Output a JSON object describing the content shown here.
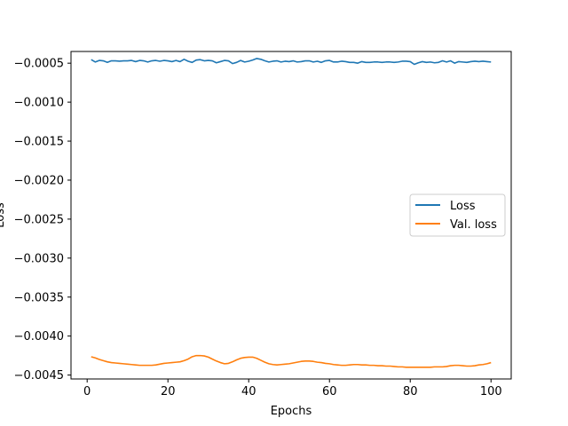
{
  "chart_data": {
    "type": "line",
    "xlabel": "Epochs",
    "ylabel": "Loss",
    "xlim": [
      -4,
      105
    ],
    "ylim": [
      -0.00455,
      -0.00035
    ],
    "xticks": [
      0,
      20,
      40,
      60,
      80,
      100
    ],
    "xtick_labels": [
      "0",
      "20",
      "40",
      "60",
      "80",
      "100"
    ],
    "yticks": [
      -0.0005,
      -0.001,
      -0.0015,
      -0.002,
      -0.0025,
      -0.003,
      -0.0035,
      -0.004,
      -0.0045
    ],
    "ytick_labels": [
      "−0.0005",
      "−0.0010",
      "−0.0015",
      "−0.0020",
      "−0.0025",
      "−0.0030",
      "−0.0035",
      "−0.0040",
      "−0.0045"
    ],
    "grid": false,
    "legend_position": "center-right",
    "series": [
      {
        "name": "Loss",
        "color": "#1f77b4",
        "x": [
          1,
          2,
          3,
          4,
          5,
          6,
          7,
          8,
          9,
          10,
          11,
          12,
          13,
          14,
          15,
          16,
          17,
          18,
          19,
          20,
          21,
          22,
          23,
          24,
          25,
          26,
          27,
          28,
          29,
          30,
          31,
          32,
          33,
          34,
          35,
          36,
          37,
          38,
          39,
          40,
          41,
          42,
          43,
          44,
          45,
          46,
          47,
          48,
          49,
          50,
          51,
          52,
          53,
          54,
          55,
          56,
          57,
          58,
          59,
          60,
          61,
          62,
          63,
          64,
          65,
          66,
          67,
          68,
          69,
          70,
          71,
          72,
          73,
          74,
          75,
          76,
          77,
          78,
          79,
          80,
          81,
          82,
          83,
          84,
          85,
          86,
          87,
          88,
          89,
          90,
          91,
          92,
          93,
          94,
          95,
          96,
          97,
          98,
          99,
          100
        ],
        "y": [
          -0.000455,
          -0.000485,
          -0.000465,
          -0.00047,
          -0.00049,
          -0.00047,
          -0.00047,
          -0.000475,
          -0.00047,
          -0.00047,
          -0.000465,
          -0.00048,
          -0.000465,
          -0.00047,
          -0.000485,
          -0.00047,
          -0.000465,
          -0.000475,
          -0.000465,
          -0.00047,
          -0.00048,
          -0.000465,
          -0.00048,
          -0.00045,
          -0.000475,
          -0.00049,
          -0.00046,
          -0.000455,
          -0.00047,
          -0.000465,
          -0.00047,
          -0.000495,
          -0.00048,
          -0.000465,
          -0.00047,
          -0.000505,
          -0.00049,
          -0.000465,
          -0.000485,
          -0.000475,
          -0.00046,
          -0.00044,
          -0.00045,
          -0.00047,
          -0.000485,
          -0.000475,
          -0.00047,
          -0.000485,
          -0.000475,
          -0.00048,
          -0.00047,
          -0.000485,
          -0.00048,
          -0.00047,
          -0.00047,
          -0.000485,
          -0.000475,
          -0.00049,
          -0.00047,
          -0.000465,
          -0.000485,
          -0.000485,
          -0.000475,
          -0.00048,
          -0.00049,
          -0.00049,
          -0.0005,
          -0.00048,
          -0.00049,
          -0.00049,
          -0.000485,
          -0.000485,
          -0.00049,
          -0.000485,
          -0.000485,
          -0.00049,
          -0.000485,
          -0.000475,
          -0.000475,
          -0.00048,
          -0.000515,
          -0.000495,
          -0.00048,
          -0.00049,
          -0.000485,
          -0.000495,
          -0.00049,
          -0.00047,
          -0.000485,
          -0.00047,
          -0.0005,
          -0.00048,
          -0.000485,
          -0.00049,
          -0.00048,
          -0.000475,
          -0.00048,
          -0.000475,
          -0.00048,
          -0.000485
        ]
      },
      {
        "name": "Val. loss",
        "color": "#ff7f0e",
        "x": [
          1,
          2,
          3,
          4,
          5,
          6,
          7,
          8,
          9,
          10,
          11,
          12,
          13,
          14,
          15,
          16,
          17,
          18,
          19,
          20,
          21,
          22,
          23,
          24,
          25,
          26,
          27,
          28,
          29,
          30,
          31,
          32,
          33,
          34,
          35,
          36,
          37,
          38,
          39,
          40,
          41,
          42,
          43,
          44,
          45,
          46,
          47,
          48,
          49,
          50,
          51,
          52,
          53,
          54,
          55,
          56,
          57,
          58,
          59,
          60,
          61,
          62,
          63,
          64,
          65,
          66,
          67,
          68,
          69,
          70,
          71,
          72,
          73,
          74,
          75,
          76,
          77,
          78,
          79,
          80,
          81,
          82,
          83,
          84,
          85,
          86,
          87,
          88,
          89,
          90,
          91,
          92,
          93,
          94,
          95,
          96,
          97,
          98,
          99,
          100
        ],
        "y": [
          -0.004265,
          -0.00428,
          -0.0043,
          -0.004315,
          -0.00433,
          -0.00434,
          -0.004345,
          -0.00435,
          -0.004355,
          -0.00436,
          -0.004365,
          -0.00437,
          -0.004375,
          -0.004375,
          -0.004375,
          -0.004375,
          -0.00437,
          -0.00436,
          -0.00435,
          -0.004345,
          -0.00434,
          -0.004335,
          -0.00433,
          -0.004315,
          -0.004295,
          -0.004265,
          -0.00425,
          -0.00425,
          -0.004255,
          -0.00427,
          -0.004295,
          -0.00432,
          -0.00434,
          -0.004355,
          -0.00435,
          -0.00433,
          -0.004305,
          -0.004285,
          -0.004275,
          -0.00427,
          -0.00427,
          -0.004285,
          -0.00431,
          -0.004335,
          -0.004355,
          -0.004365,
          -0.00437,
          -0.004365,
          -0.00436,
          -0.004355,
          -0.004345,
          -0.004335,
          -0.004325,
          -0.00432,
          -0.00432,
          -0.004325,
          -0.004335,
          -0.00434,
          -0.00435,
          -0.004355,
          -0.004365,
          -0.00437,
          -0.004375,
          -0.004375,
          -0.00437,
          -0.004365,
          -0.004365,
          -0.00437,
          -0.00437,
          -0.004375,
          -0.004375,
          -0.00438,
          -0.00438,
          -0.004385,
          -0.004385,
          -0.00439,
          -0.004395,
          -0.004395,
          -0.0044,
          -0.0044,
          -0.0044,
          -0.0044,
          -0.0044,
          -0.0044,
          -0.0044,
          -0.004395,
          -0.004395,
          -0.004395,
          -0.00439,
          -0.00438,
          -0.004375,
          -0.004375,
          -0.00438,
          -0.004385,
          -0.004385,
          -0.00438,
          -0.00437,
          -0.004365,
          -0.004355,
          -0.00434
        ]
      }
    ]
  }
}
